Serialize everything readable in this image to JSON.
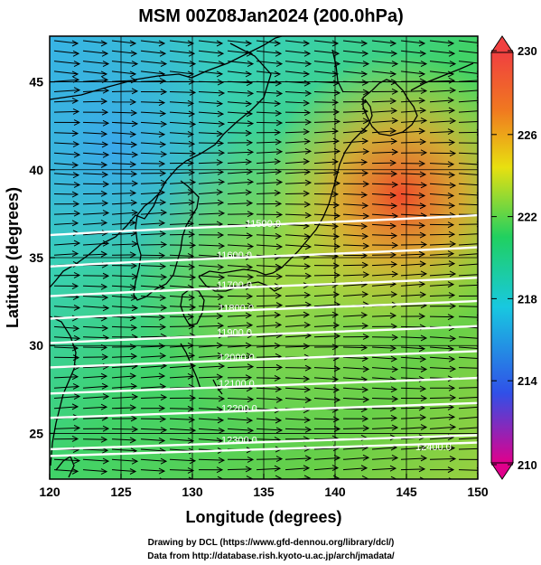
{
  "title": "MSM 00Z08Jan2024 (200.0hPa)",
  "axes": {
    "xlabel": "Longitude (degrees)",
    "ylabel": "Latitude  (degrees)",
    "xlim": [
      120,
      150
    ],
    "ylim": [
      22.4,
      47.6
    ],
    "xticks": [
      "120",
      "125",
      "130",
      "135",
      "140",
      "145",
      "150"
    ],
    "xtick_values": [
      120,
      125,
      130,
      135,
      140,
      145,
      150
    ],
    "yticks": [
      "25",
      "30",
      "35",
      "40",
      "45"
    ],
    "ytick_values": [
      25,
      30,
      35,
      40,
      45
    ]
  },
  "colorbar": {
    "min": 210,
    "max": 230,
    "labels": [
      "230",
      "226",
      "222",
      "218",
      "214",
      "210"
    ],
    "label_values": [
      230,
      226,
      222,
      218,
      214,
      210
    ]
  },
  "contours": [
    {
      "label": "11500.0",
      "lat": 37.0
    },
    {
      "label": "11600.0",
      "lat": 35.2
    },
    {
      "label": "11700.0",
      "lat": 33.5
    },
    {
      "label": "11800.0",
      "lat": 32.2
    },
    {
      "label": "11900.0",
      "lat": 30.8
    },
    {
      "label": "12000.0",
      "lat": 29.4
    },
    {
      "label": "12100.0",
      "lat": 27.9
    },
    {
      "label": "12200.0",
      "lat": 26.5
    },
    {
      "label": "12300.0",
      "lat": 24.7
    },
    {
      "label": "12400.0",
      "lat": 24.3
    }
  ],
  "footer": {
    "line1": "Drawing by DCL (https://www.gfd-dennou.org/library/dcl/)",
    "line2": "Data from http://database.rish.kyoto-u.ac.jp/arch/jmadata/"
  },
  "colors": {
    "colorbar_stops": [
      "#e0008c",
      "#3050e8",
      "#18c8e0",
      "#20d060",
      "#e8e010",
      "#f07820",
      "#f04040"
    ]
  }
}
